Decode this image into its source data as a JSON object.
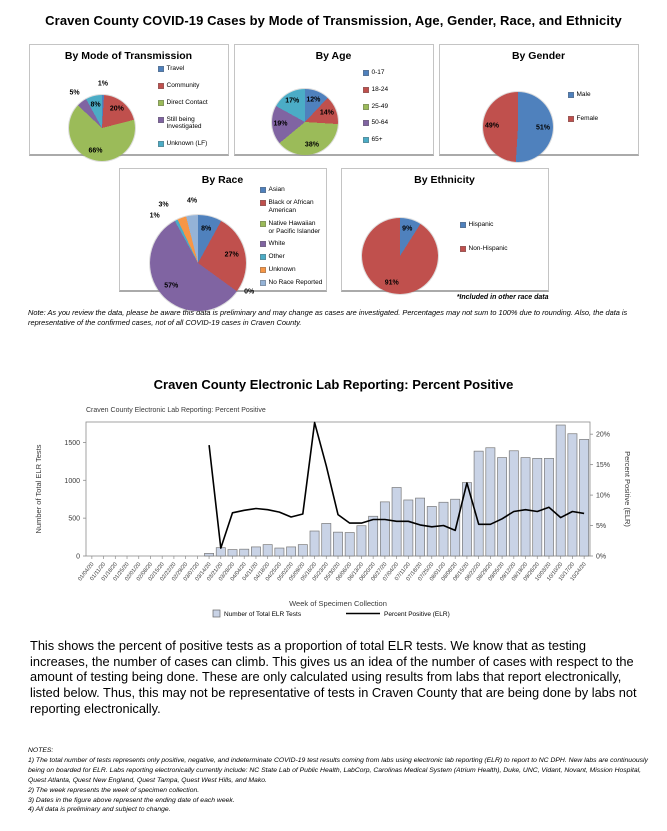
{
  "page_title": "Craven County COVID-19 Cases by Mode of Transmission, Age, Gender, Race, and Ethnicity",
  "preliminary_note": "Note: As you review the data, please be aware this data is preliminary and may change as cases are investigated. Percentages may not sum to 100% due to rounding. Also, the data is representative of the confirmed cases, not of all COVID-19 cases in Craven County.",
  "race_footnote": "*Included in other race data",
  "elr_section_title": "Craven County Electronic Lab Reporting: Percent Positive",
  "paragraph": "This shows the percent of positive tests as a proportion of total ELR tests. We know that as testing increases, the number of cases can climb. This gives us an idea of the number of cases with respect to the amount of testing being done. These are only calculated using results from labs that report electronically, listed below. Thus, this may not be representative of tests in Craven County that are being done by labs not reporting electronically.",
  "notes_heading": "NOTES:",
  "notes": [
    "1) The total number of tests represents only positive, negative, and indeterminate COVID-19 test results coming from labs using electronic lab reporting (ELR) to report to NC DPH. New labs are continuously being on boarded for ELR. Labs reporting electronically currently include: NC State Lab of Public Health, LabCorp, Carolinas Medical System (Atrium Health), Duke, UNC, Vidant, Novant, Mission Hospital, Quest Atlanta, Quest New England, Quest Tampa, Quest West Hills, and Mako.",
    "2) The week represents the week of specimen collection.",
    "3) Dates in the figure above represent the ending date of each week.",
    "4) All data is preliminary and subject to change."
  ],
  "chart_data": [
    {
      "type": "pie",
      "title": "By Mode of Transmission",
      "labels": [
        "Travel",
        "Community",
        "Direct Contact",
        "Still being Investigated",
        "Unknown  (LF)"
      ],
      "values": [
        1,
        20,
        66,
        5,
        8
      ],
      "colors": [
        "#4F81BD",
        "#C0504D",
        "#9BBB59",
        "#8064A2",
        "#4BACC6"
      ],
      "legend_position": "right"
    },
    {
      "type": "pie",
      "title": "By Age",
      "labels": [
        "0-17",
        "18-24",
        "25-49",
        "50-64",
        "65+"
      ],
      "values": [
        12,
        14,
        38,
        19,
        17
      ],
      "colors": [
        "#4F81BD",
        "#C0504D",
        "#9BBB59",
        "#8064A2",
        "#4BACC6"
      ],
      "legend_position": "right"
    },
    {
      "type": "pie",
      "title": "By Gender",
      "labels": [
        "Male",
        "Female"
      ],
      "values": [
        51,
        49
      ],
      "colors": [
        "#4F81BD",
        "#C0504D"
      ],
      "legend_position": "right"
    },
    {
      "type": "pie",
      "title": "By Race",
      "labels": [
        "Asian",
        "Black or African American",
        "Native Hawaiian or Pacific Islander",
        "White",
        "Other",
        "Unknown",
        "No Race Reported"
      ],
      "values": [
        8,
        27,
        0,
        57,
        1,
        3,
        4
      ],
      "colors": [
        "#4F81BD",
        "#C0504D",
        "#9BBB59",
        "#8064A2",
        "#4BACC6",
        "#F79646",
        "#95B3D7"
      ],
      "legend_position": "right"
    },
    {
      "type": "pie",
      "title": "By Ethnicity",
      "labels": [
        "Hispanic",
        "Non-Hispanic"
      ],
      "values": [
        9,
        91
      ],
      "colors": [
        "#4F81BD",
        "#C0504D"
      ],
      "legend_position": "right"
    },
    {
      "type": "bar+line",
      "title": "Craven County Electronic Lab Reporting: Percent Positive",
      "xlabel": "Week of Specimen Collection",
      "ylabel_left": "Number of Total ELR Tests",
      "ylabel_right": "Percent Positive (ELR)",
      "y_left_ticks": [
        0,
        500,
        1000,
        1500
      ],
      "y_left_max": 1770,
      "y_right_ticks": [
        0,
        5,
        10,
        15,
        20
      ],
      "y_right_max": 22,
      "grid": false,
      "legend_position": "bottom",
      "categories": [
        "01/04/20",
        "01/11/20",
        "01/18/20",
        "01/25/20",
        "02/01/20",
        "02/08/20",
        "02/15/20",
        "02/22/20",
        "02/29/20",
        "03/07/20",
        "03/14/20",
        "03/21/20",
        "03/28/20",
        "04/04/20",
        "04/11/20",
        "04/18/20",
        "04/25/20",
        "05/02/20",
        "05/09/20",
        "05/16/20",
        "05/23/20",
        "05/30/20",
        "06/06/20",
        "06/13/20",
        "06/20/20",
        "06/27/20",
        "07/04/20",
        "07/11/20",
        "07/18/20",
        "07/25/20",
        "08/01/20",
        "08/08/20",
        "08/15/20",
        "08/22/20",
        "08/29/20",
        "09/05/20",
        "09/12/20",
        "09/19/20",
        "09/26/20",
        "10/03/20",
        "10/10/20",
        "10/17/20",
        "10/24/20"
      ],
      "series": [
        {
          "name": "Number of Total ELR Tests",
          "type": "bar",
          "axis": "left",
          "color": "#C9D3E6",
          "values": [
            0,
            0,
            0,
            0,
            0,
            0,
            0,
            0,
            0,
            0,
            35,
            110,
            85,
            90,
            120,
            150,
            105,
            120,
            150,
            330,
            430,
            315,
            310,
            400,
            525,
            715,
            905,
            740,
            765,
            655,
            710,
            750,
            970,
            1385,
            1430,
            1300,
            1390,
            1300,
            1290,
            1290,
            1730,
            1615,
            1540
          ]
        },
        {
          "name": "Percent Positive (ELR)",
          "type": "line",
          "axis": "right",
          "color": "#000000",
          "values": [
            null,
            null,
            null,
            null,
            null,
            null,
            null,
            null,
            null,
            null,
            18.2,
            1.3,
            7.1,
            7.5,
            7.8,
            7.6,
            7.2,
            6.4,
            6.9,
            21.9,
            14.8,
            6.8,
            5.4,
            5.4,
            6.0,
            6.0,
            5.7,
            5.7,
            5.1,
            4.8,
            5.0,
            4.2,
            12.0,
            5.2,
            5.2,
            6.1,
            7.3,
            7.6,
            7.3,
            8.0,
            6.3,
            7.3,
            7.0
          ]
        }
      ]
    }
  ]
}
